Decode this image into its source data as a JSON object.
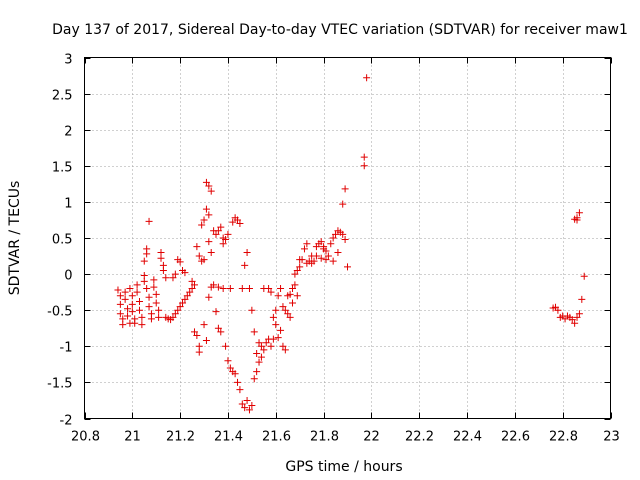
{
  "chart_data": {
    "type": "scatter",
    "title": "Day 137 of 2017, Sidereal Day-to-day VTEC variation (SDTVAR) for receiver maw1",
    "xlabel": "GPS time / hours",
    "ylabel": "SDTVAR / TECUs",
    "xlim": [
      20.8,
      23
    ],
    "ylim": [
      -2,
      3
    ],
    "xticks": [
      "20.8",
      "21",
      "21.2",
      "21.4",
      "21.6",
      "21.8",
      "22",
      "22.2",
      "22.4",
      "22.6",
      "22.8",
      "23"
    ],
    "yticks": [
      "-2",
      "-1.5",
      "-1",
      "-0.5",
      "0",
      "0.5",
      "1",
      "1.5",
      "2",
      "2.5",
      "3"
    ],
    "grid": true,
    "marker": "+",
    "color": "#e00000",
    "series": [
      {
        "name": "maw1",
        "points": [
          [
            20.94,
            -0.22
          ],
          [
            20.95,
            -0.3
          ],
          [
            20.95,
            -0.42
          ],
          [
            20.95,
            -0.55
          ],
          [
            20.96,
            -0.62
          ],
          [
            20.96,
            -0.7
          ],
          [
            20.97,
            -0.25
          ],
          [
            20.97,
            -0.35
          ],
          [
            20.98,
            -0.48
          ],
          [
            20.98,
            -0.58
          ],
          [
            20.99,
            -0.68
          ],
          [
            20.99,
            -0.2
          ],
          [
            21.0,
            -0.3
          ],
          [
            21.0,
            -0.42
          ],
          [
            21.0,
            -0.52
          ],
          [
            21.01,
            -0.62
          ],
          [
            21.01,
            -0.68
          ],
          [
            21.02,
            -0.15
          ],
          [
            21.02,
            -0.25
          ],
          [
            21.03,
            -0.38
          ],
          [
            21.03,
            -0.5
          ],
          [
            21.04,
            -0.6
          ],
          [
            21.04,
            -0.7
          ],
          [
            21.05,
            -0.1
          ],
          [
            21.05,
            -0.02
          ],
          [
            21.05,
            0.18
          ],
          [
            21.06,
            0.28
          ],
          [
            21.06,
            0.35
          ],
          [
            21.07,
            0.73
          ],
          [
            21.06,
            -0.2
          ],
          [
            21.07,
            -0.32
          ],
          [
            21.07,
            -0.45
          ],
          [
            21.08,
            -0.55
          ],
          [
            21.08,
            -0.62
          ],
          [
            21.09,
            -0.08
          ],
          [
            21.09,
            -0.18
          ],
          [
            21.1,
            -0.28
          ],
          [
            21.1,
            -0.4
          ],
          [
            21.11,
            -0.5
          ],
          [
            21.11,
            -0.6
          ],
          [
            21.12,
            0.3
          ],
          [
            21.12,
            0.22
          ],
          [
            21.13,
            0.12
          ],
          [
            21.13,
            0.05
          ],
          [
            21.14,
            -0.05
          ],
          [
            21.14,
            -0.6
          ],
          [
            21.15,
            -0.62
          ],
          [
            21.16,
            -0.63
          ],
          [
            21.17,
            -0.6
          ],
          [
            21.17,
            -0.05
          ],
          [
            21.18,
            -0.55
          ],
          [
            21.18,
            0.0
          ],
          [
            21.19,
            -0.5
          ],
          [
            21.19,
            0.2
          ],
          [
            21.2,
            -0.45
          ],
          [
            21.2,
            0.17
          ],
          [
            21.21,
            -0.4
          ],
          [
            21.21,
            0.05
          ],
          [
            21.22,
            -0.35
          ],
          [
            21.22,
            0.02
          ],
          [
            21.23,
            -0.3
          ],
          [
            21.24,
            -0.25
          ],
          [
            21.25,
            -0.2
          ],
          [
            21.25,
            -0.1
          ],
          [
            21.26,
            -0.15
          ],
          [
            21.26,
            -0.8
          ],
          [
            21.27,
            -0.85
          ],
          [
            21.27,
            0.38
          ],
          [
            21.28,
            -1.0
          ],
          [
            21.28,
            -1.08
          ],
          [
            21.28,
            0.25
          ],
          [
            21.29,
            0.18
          ],
          [
            21.29,
            0.68
          ],
          [
            21.3,
            0.75
          ],
          [
            21.3,
            0.2
          ],
          [
            21.3,
            -0.7
          ],
          [
            21.31,
            -0.92
          ],
          [
            21.31,
            1.27
          ],
          [
            21.31,
            0.9
          ],
          [
            21.32,
            1.22
          ],
          [
            21.32,
            0.82
          ],
          [
            21.32,
            0.45
          ],
          [
            21.32,
            -0.32
          ],
          [
            21.33,
            1.15
          ],
          [
            21.33,
            0.3
          ],
          [
            21.33,
            -0.18
          ],
          [
            21.34,
            0.6
          ],
          [
            21.34,
            -0.15
          ],
          [
            21.35,
            0.55
          ],
          [
            21.35,
            -0.52
          ],
          [
            21.36,
            0.6
          ],
          [
            21.36,
            -0.18
          ],
          [
            21.36,
            -0.75
          ],
          [
            21.37,
            0.65
          ],
          [
            21.37,
            -0.8
          ],
          [
            21.38,
            0.5
          ],
          [
            21.38,
            0.42
          ],
          [
            21.38,
            -0.2
          ],
          [
            21.39,
            0.48
          ],
          [
            21.39,
            -1.0
          ],
          [
            21.4,
            0.55
          ],
          [
            21.4,
            -1.2
          ],
          [
            21.41,
            -1.3
          ],
          [
            21.41,
            -0.2
          ],
          [
            21.42,
            -1.35
          ],
          [
            21.42,
            0.72
          ],
          [
            21.43,
            -1.38
          ],
          [
            21.43,
            0.78
          ],
          [
            21.44,
            -1.5
          ],
          [
            21.44,
            0.75
          ],
          [
            21.45,
            -1.6
          ],
          [
            21.45,
            0.7
          ],
          [
            21.46,
            -1.8
          ],
          [
            21.46,
            -0.2
          ],
          [
            21.47,
            -1.85
          ],
          [
            21.47,
            0.12
          ],
          [
            21.48,
            -1.75
          ],
          [
            21.48,
            0.3
          ],
          [
            21.49,
            -1.88
          ],
          [
            21.49,
            -0.2
          ],
          [
            21.5,
            -1.82
          ],
          [
            21.5,
            -0.5
          ],
          [
            21.51,
            -1.45
          ],
          [
            21.51,
            -0.8
          ],
          [
            21.52,
            -1.35
          ],
          [
            21.52,
            -1.1
          ],
          [
            21.53,
            -1.22
          ],
          [
            21.53,
            -0.95
          ],
          [
            21.54,
            -1.0
          ],
          [
            21.54,
            -1.15
          ],
          [
            21.55,
            -1.05
          ],
          [
            21.55,
            -0.2
          ],
          [
            21.56,
            -0.95
          ],
          [
            21.57,
            -0.9
          ],
          [
            21.57,
            -0.2
          ],
          [
            21.58,
            -1.0
          ],
          [
            21.58,
            -0.25
          ],
          [
            21.59,
            -0.6
          ],
          [
            21.59,
            -0.9
          ],
          [
            21.6,
            -0.7
          ],
          [
            21.6,
            -0.5
          ],
          [
            21.61,
            -0.88
          ],
          [
            21.61,
            -0.3
          ],
          [
            21.62,
            -0.78
          ],
          [
            21.62,
            -0.2
          ],
          [
            21.63,
            -1.0
          ],
          [
            21.63,
            -0.45
          ],
          [
            21.64,
            -1.05
          ],
          [
            21.64,
            -0.5
          ],
          [
            21.65,
            -0.55
          ],
          [
            21.65,
            -0.3
          ],
          [
            21.66,
            -0.28
          ],
          [
            21.66,
            -0.6
          ],
          [
            21.67,
            -0.2
          ],
          [
            21.67,
            -0.4
          ],
          [
            21.68,
            -0.15
          ],
          [
            21.68,
            0.0
          ],
          [
            21.69,
            0.05
          ],
          [
            21.69,
            -0.3
          ],
          [
            21.7,
            0.1
          ],
          [
            21.7,
            0.2
          ],
          [
            21.71,
            0.2
          ],
          [
            21.72,
            0.35
          ],
          [
            21.73,
            0.42
          ],
          [
            21.73,
            0.15
          ],
          [
            21.74,
            0.18
          ],
          [
            21.75,
            0.15
          ],
          [
            21.75,
            0.25
          ],
          [
            21.76,
            0.18
          ],
          [
            21.77,
            0.25
          ],
          [
            21.77,
            0.38
          ],
          [
            21.78,
            0.42
          ],
          [
            21.79,
            0.22
          ],
          [
            21.79,
            0.45
          ],
          [
            21.8,
            0.35
          ],
          [
            21.8,
            0.38
          ],
          [
            21.81,
            0.32
          ],
          [
            21.81,
            0.2
          ],
          [
            21.82,
            0.25
          ],
          [
            21.83,
            0.42
          ],
          [
            21.84,
            0.5
          ],
          [
            21.84,
            0.18
          ],
          [
            21.85,
            0.55
          ],
          [
            21.86,
            0.6
          ],
          [
            21.86,
            0.3
          ],
          [
            21.87,
            0.58
          ],
          [
            21.88,
            0.55
          ],
          [
            21.88,
            0.97
          ],
          [
            21.89,
            1.18
          ],
          [
            21.89,
            0.48
          ],
          [
            21.9,
            0.1
          ],
          [
            21.97,
            1.5
          ],
          [
            21.97,
            1.62
          ],
          [
            21.98,
            2.72
          ],
          [
            22.76,
            -0.47
          ],
          [
            22.77,
            -0.46
          ],
          [
            22.78,
            -0.5
          ],
          [
            22.79,
            -0.6
          ],
          [
            22.8,
            -0.58
          ],
          [
            22.81,
            -0.62
          ],
          [
            22.82,
            -0.58
          ],
          [
            22.83,
            -0.6
          ],
          [
            22.84,
            -0.63
          ],
          [
            22.85,
            -0.68
          ],
          [
            22.85,
            0.76
          ],
          [
            22.86,
            -0.6
          ],
          [
            22.86,
            0.78
          ],
          [
            22.86,
            0.75
          ],
          [
            22.87,
            -0.55
          ],
          [
            22.87,
            0.85
          ],
          [
            22.88,
            -0.35
          ],
          [
            22.89,
            -0.03
          ]
        ]
      }
    ]
  }
}
